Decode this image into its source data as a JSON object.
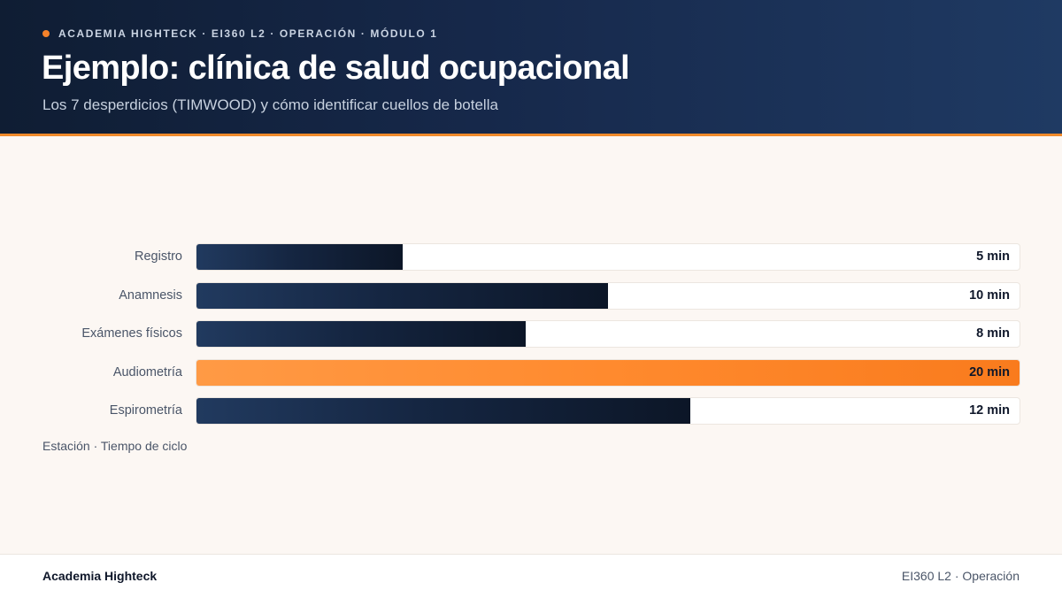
{
  "header": {
    "kicker": "ACADEMIA HIGHTECK · EI360 L2 · OPERACIÓN · MÓDULO 1",
    "title": "Ejemplo: clínica de salud ocupacional",
    "subtitle": "Los 7 desperdicios (TIMWOOD) y cómo identificar cuellos de botella"
  },
  "colors": {
    "accent": "#f5822a",
    "bar": "#152642",
    "bottleneck_bar": "#ff8a2e",
    "header_bg": "#16284a",
    "page_bg": "#fcf7f3"
  },
  "chart_data": {
    "type": "bar",
    "orientation": "horizontal",
    "categories": [
      "Registro",
      "Anamnesis",
      "Exámenes físicos",
      "Audiometría",
      "Espirometría"
    ],
    "values": [
      5,
      10,
      8,
      20,
      12
    ],
    "value_labels": [
      "5 min",
      "10 min",
      "8 min",
      "20 min",
      "12 min"
    ],
    "unit": "min",
    "highlight_index": 3,
    "xlim": [
      0,
      20
    ],
    "caption": "Estación · Tiempo de ciclo",
    "legend": "none",
    "grid": false
  },
  "footer": {
    "brand": "Academia Highteck",
    "right": "EI360 L2 · Operación"
  }
}
